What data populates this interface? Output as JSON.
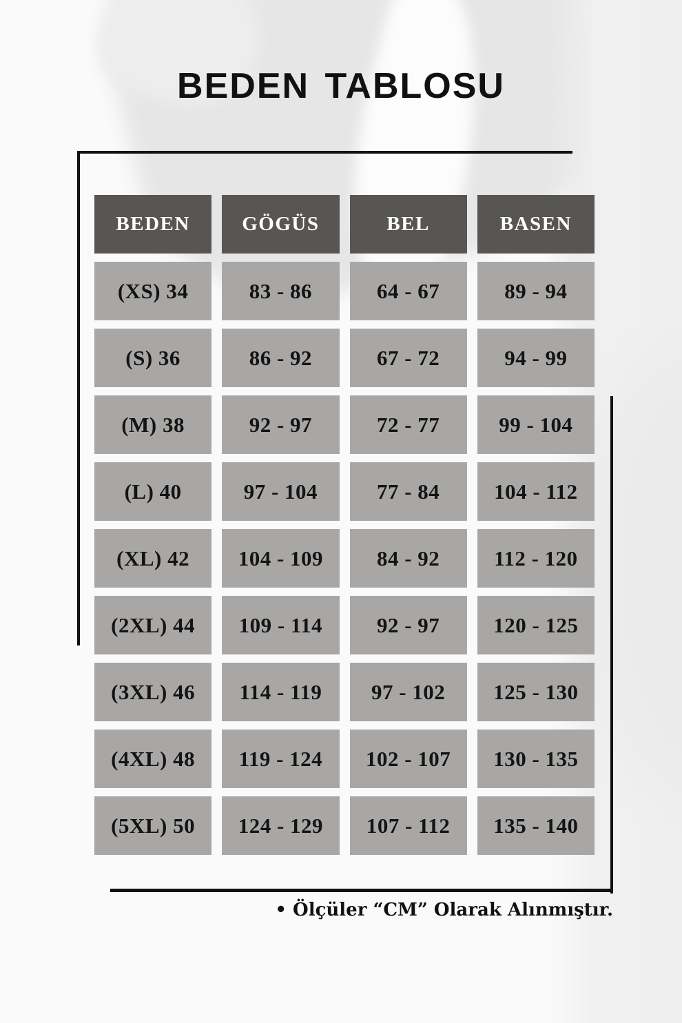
{
  "title": "BEDEN TABLOSU",
  "table": {
    "headers": [
      "BEDEN",
      "GÖGÜS",
      "BEL",
      "BASEN"
    ],
    "rows": [
      [
        "(XS) 34",
        "83 - 86",
        "64 - 67",
        "89 - 94"
      ],
      [
        "(S) 36",
        "86 - 92",
        "67 - 72",
        "94 - 99"
      ],
      [
        "(M) 38",
        "92 - 97",
        "72 - 77",
        "99 - 104"
      ],
      [
        "(L) 40",
        "97 - 104",
        "77 - 84",
        "104 - 112"
      ],
      [
        "(XL) 42",
        "104 - 109",
        "84 - 92",
        "112 - 120"
      ],
      [
        "(2XL) 44",
        "109 - 114",
        "92 - 97",
        "120 - 125"
      ],
      [
        "(3XL) 46",
        "114 - 119",
        "97 - 102",
        "125 - 130"
      ],
      [
        "(4XL) 48",
        "119 - 124",
        "102 - 107",
        "130 - 135"
      ],
      [
        "(5XL) 50",
        "124 - 129",
        "107 - 112",
        "135 - 140"
      ]
    ]
  },
  "footer": {
    "note": "• Ölçüler “CM” Olarak Alınmıştır."
  },
  "colors": {
    "page_bg": "#fafafa",
    "header_bg": "#585654",
    "header_text": "#ffffff",
    "cell_bg": "#a8a7a5",
    "cell_text": "#141414",
    "line": "#111111"
  }
}
